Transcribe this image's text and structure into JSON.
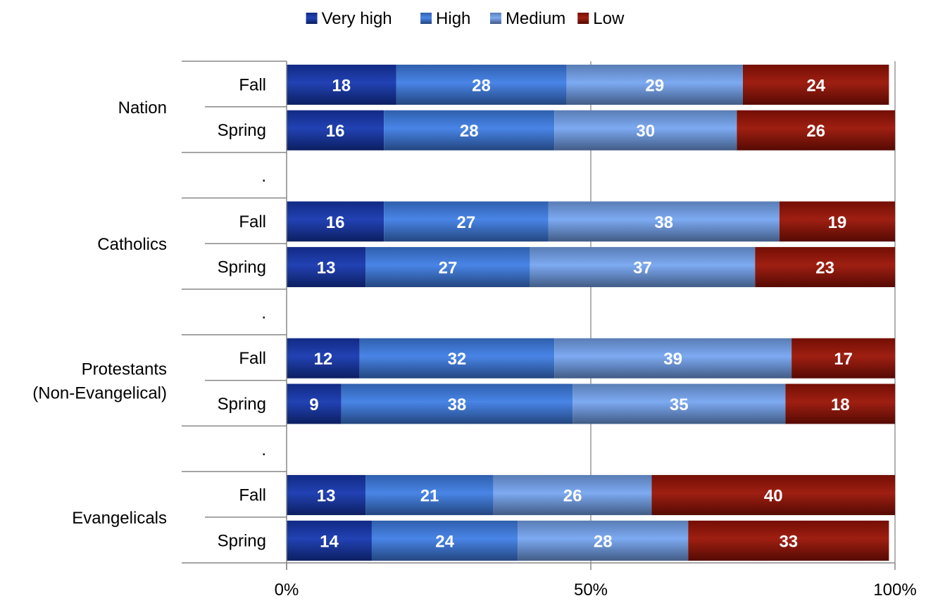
{
  "chart_data": {
    "type": "bar",
    "orientation": "horizontal",
    "stacked": "percent",
    "title": "",
    "xlabel": "",
    "ylabel": "",
    "xlim": [
      0,
      100
    ],
    "x_ticks": [
      "0%",
      "50%",
      "100%"
    ],
    "legend": {
      "placement": "top-center",
      "entries": [
        "Very high",
        "High",
        "Medium",
        "Low"
      ]
    },
    "grid": "vertical at 50%",
    "colors": {
      "Very high": "#1638b0",
      "High": "#3f7fe6",
      "Medium": "#76a6f1",
      "Low": "#9a1305",
      "axis": "#888888",
      "grid": "#999999"
    },
    "groups": [
      {
        "label": "Nation",
        "rows": [
          {
            "label": "Fall",
            "values": [
              18,
              28,
              29,
              24
            ]
          },
          {
            "label": "Spring",
            "values": [
              16,
              28,
              30,
              26
            ]
          }
        ]
      },
      {
        "label": "Catholics",
        "rows": [
          {
            "label": "Fall",
            "values": [
              16,
              27,
              38,
              19
            ]
          },
          {
            "label": "Spring",
            "values": [
              13,
              27,
              37,
              23
            ]
          }
        ]
      },
      {
        "label": "Protestants\n(Non-Evangelical)",
        "rows": [
          {
            "label": "Fall",
            "values": [
              12,
              32,
              39,
              17
            ]
          },
          {
            "label": "Spring",
            "values": [
              9,
              38,
              35,
              18
            ]
          }
        ]
      },
      {
        "label": "Evangelicals",
        "rows": [
          {
            "label": "Fall",
            "values": [
              13,
              21,
              26,
              40
            ]
          },
          {
            "label": "Spring",
            "values": [
              14,
              24,
              28,
              33
            ]
          }
        ]
      }
    ],
    "separator_label": ".",
    "series": [
      {
        "name": "Very high"
      },
      {
        "name": "High"
      },
      {
        "name": "Medium"
      },
      {
        "name": "Low"
      }
    ]
  }
}
